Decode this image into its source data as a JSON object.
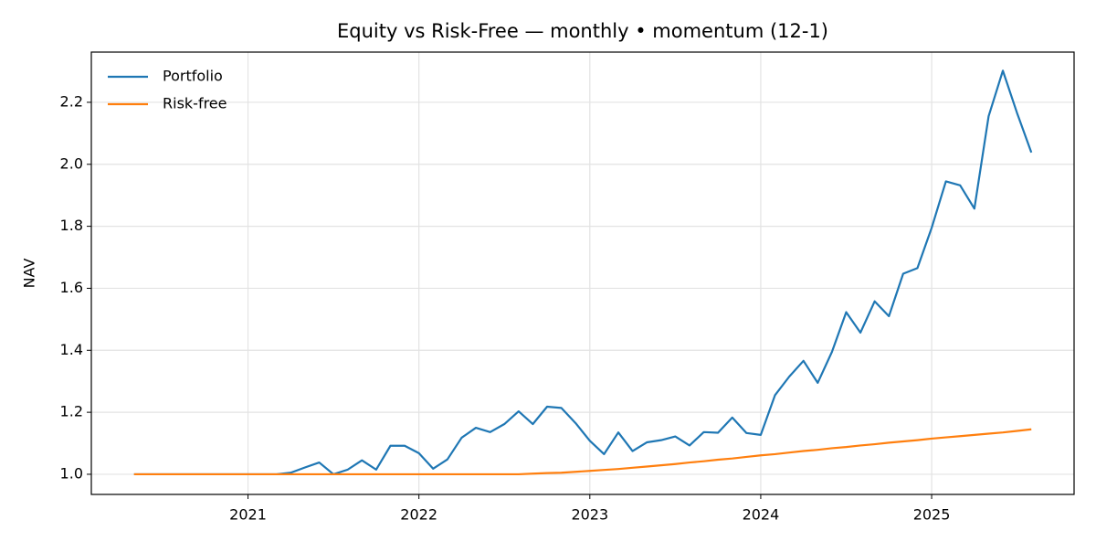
{
  "chart_data": {
    "type": "line",
    "title": "Equity vs Risk-Free — monthly • momentum (12-1)",
    "ylabel": "NAV",
    "x": [
      "2020-05",
      "2020-06",
      "2020-07",
      "2020-08",
      "2020-09",
      "2020-10",
      "2020-11",
      "2020-12",
      "2021-01",
      "2021-02",
      "2021-03",
      "2021-04",
      "2021-05",
      "2021-06",
      "2021-07",
      "2021-08",
      "2021-09",
      "2021-10",
      "2021-11",
      "2021-12",
      "2022-01",
      "2022-02",
      "2022-03",
      "2022-04",
      "2022-05",
      "2022-06",
      "2022-07",
      "2022-08",
      "2022-09",
      "2022-10",
      "2022-11",
      "2022-12",
      "2023-01",
      "2023-02",
      "2023-03",
      "2023-04",
      "2023-05",
      "2023-06",
      "2023-07",
      "2023-08",
      "2023-09",
      "2023-10",
      "2023-11",
      "2023-12",
      "2024-01",
      "2024-02",
      "2024-03",
      "2024-04",
      "2024-05",
      "2024-06",
      "2024-07",
      "2024-08",
      "2024-09",
      "2024-10",
      "2024-11",
      "2024-12",
      "2025-01",
      "2025-02",
      "2025-03",
      "2025-04",
      "2025-05",
      "2025-06",
      "2025-07",
      "2025-08"
    ],
    "series": [
      {
        "name": "Portfolio",
        "color": "#1f77b4",
        "values": [
          1.0,
          1.0,
          1.0,
          1.0,
          1.0,
          1.0,
          1.0,
          1.0,
          1.0,
          1.0,
          1.0,
          1.005,
          1.022,
          1.038,
          1.0,
          1.015,
          1.045,
          1.015,
          1.092,
          1.092,
          1.068,
          1.018,
          1.048,
          1.118,
          1.15,
          1.136,
          1.162,
          1.203,
          1.162,
          1.218,
          1.214,
          1.165,
          1.108,
          1.065,
          1.135,
          1.075,
          1.103,
          1.11,
          1.122,
          1.093,
          1.136,
          1.134,
          1.183,
          1.133,
          1.127,
          1.255,
          1.315,
          1.366,
          1.295,
          1.395,
          1.523,
          1.457,
          1.558,
          1.51,
          1.647,
          1.665,
          1.795,
          1.945,
          1.932,
          1.857,
          2.155,
          2.302,
          2.165,
          2.038
        ]
      },
      {
        "name": "Risk-free",
        "color": "#ff7f0e",
        "values": [
          1.0,
          1.0,
          1.0,
          1.0,
          1.0,
          1.0,
          1.0,
          1.0,
          1.0,
          1.0,
          1.0,
          1.0,
          1.0,
          1.0,
          1.0,
          1.0,
          1.0,
          1.0,
          1.0,
          1.0,
          1.0,
          1.0,
          1.0,
          1.0,
          1.0,
          1.0,
          1.0,
          1.0,
          1.002,
          1.004,
          1.005,
          1.008,
          1.011,
          1.014,
          1.017,
          1.021,
          1.025,
          1.029,
          1.033,
          1.038,
          1.042,
          1.047,
          1.051,
          1.056,
          1.061,
          1.065,
          1.07,
          1.075,
          1.079,
          1.084,
          1.088,
          1.093,
          1.097,
          1.102,
          1.106,
          1.11,
          1.115,
          1.119,
          1.123,
          1.127,
          1.131,
          1.135,
          1.14,
          1.145
        ]
      }
    ],
    "xlim": [
      "2020-02",
      "2025-11"
    ],
    "xticks": [
      "2021",
      "2022",
      "2023",
      "2024",
      "2025"
    ],
    "ylim": [
      0.935,
      2.362
    ],
    "yticks": [
      {
        "value": 1.0,
        "label": "1.0"
      },
      {
        "value": 1.2,
        "label": "1.2"
      },
      {
        "value": 1.4,
        "label": "1.4"
      },
      {
        "value": 1.6,
        "label": "1.6"
      },
      {
        "value": 1.8,
        "label": "1.8"
      },
      {
        "value": 2.0,
        "label": "2.0"
      },
      {
        "value": 2.2,
        "label": "2.2"
      }
    ],
    "grid": true,
    "legend": "upper left"
  }
}
